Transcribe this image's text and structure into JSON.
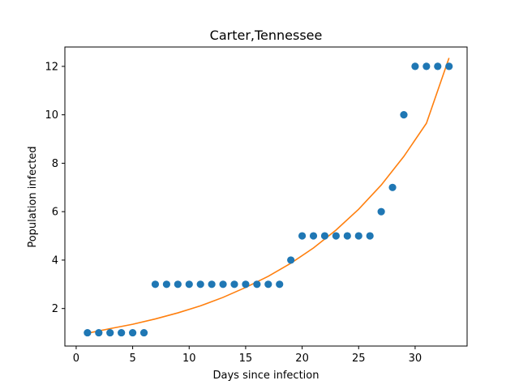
{
  "chart_data": {
    "type": "scatter",
    "title": "Carter,Tennessee",
    "xlabel": "Days since infection",
    "ylabel": "Population infected",
    "xlim": [
      -1,
      34.6
    ],
    "ylim": [
      0.45,
      12.8
    ],
    "x_ticks": [
      0,
      5,
      10,
      15,
      20,
      25,
      30
    ],
    "y_ticks": [
      2,
      4,
      6,
      8,
      10,
      12
    ],
    "grid": false,
    "series": [
      {
        "type": "scatter",
        "color": "#1f77b4",
        "x": [
          1,
          2,
          3,
          4,
          5,
          6,
          7,
          8,
          9,
          10,
          11,
          12,
          13,
          14,
          15,
          16,
          17,
          18,
          19,
          20,
          21,
          22,
          23,
          24,
          25,
          26,
          27,
          28,
          29,
          30,
          31,
          32,
          33
        ],
        "y": [
          1,
          1,
          1,
          1,
          1,
          1,
          3,
          3,
          3,
          3,
          3,
          3,
          3,
          3,
          3,
          3,
          3,
          3,
          4,
          5,
          5,
          5,
          5,
          5,
          5,
          5,
          6,
          7,
          10,
          12,
          12,
          12,
          12
        ]
      },
      {
        "type": "line",
        "color": "#ff7f0e",
        "x": [
          1,
          3,
          5,
          7,
          9,
          11,
          13,
          15,
          17,
          19,
          21,
          23,
          25,
          27,
          29,
          31,
          33
        ],
        "y": [
          0.98,
          1.17,
          1.35,
          1.57,
          1.82,
          2.11,
          2.46,
          2.87,
          3.33,
          3.87,
          4.5,
          5.24,
          6.1,
          7.1,
          8.28,
          9.65,
          12.35
        ]
      }
    ]
  }
}
